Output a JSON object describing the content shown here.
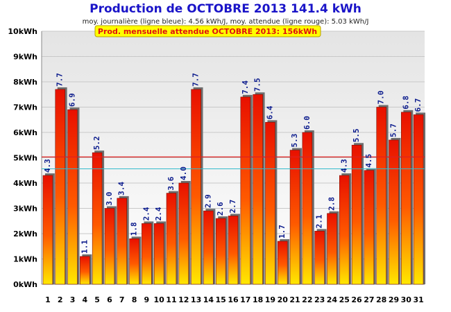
{
  "header": {
    "title": "Production de OCTOBRE 2013  141.4 kWh",
    "subtitle": "moy. journalière (ligne bleue): 4.56 kWh/J,   moy. attendue (ligne rouge): 5.03 kWh/J",
    "expected_label": "Prod. mensuelle attendue OCTOBRE 2013: 156kWh"
  },
  "colors": {
    "title": "#1a14c8",
    "bar_top": "#e81000",
    "bar_bottom": "#ffe800",
    "bar_shadow": "#6e6e6e",
    "avg_line": "#33bbcc",
    "expected_line": "#e02020",
    "label_box_bg": "#ffff00",
    "value_label": "#0a1a8c"
  },
  "chart_data": {
    "type": "bar",
    "title": "Production de OCTOBRE 2013  141.4 kWh",
    "categories": [
      "1",
      "2",
      "3",
      "4",
      "5",
      "6",
      "7",
      "8",
      "9",
      "10",
      "11",
      "12",
      "13",
      "14",
      "15",
      "16",
      "17",
      "18",
      "19",
      "20",
      "21",
      "22",
      "23",
      "24",
      "25",
      "26",
      "27",
      "28",
      "29",
      "30",
      "31"
    ],
    "values": [
      4.3,
      7.7,
      6.9,
      1.1,
      5.2,
      3.0,
      3.4,
      1.8,
      2.4,
      2.4,
      3.6,
      4.0,
      7.7,
      2.9,
      2.6,
      2.7,
      7.4,
      7.5,
      6.4,
      1.7,
      5.3,
      6.0,
      2.1,
      2.8,
      4.3,
      5.5,
      4.5,
      7.0,
      5.7,
      6.8,
      6.7
    ],
    "value_labels": [
      "4.3",
      "7.7",
      "6.9",
      "1.1",
      "5.2",
      "3.0",
      "3.4",
      "1.8",
      "2.4",
      "2.4",
      "3.6",
      "4.0",
      "7.7",
      "2.9",
      "2.6",
      "2.7",
      "7.4",
      "7.5",
      "6.4",
      "1.7",
      "5.3",
      "6.0",
      "2.1",
      "2.8",
      "4.3",
      "5.5",
      "4.5",
      "7.0",
      "5.7",
      "6.8",
      "6.7"
    ],
    "ylim": [
      0,
      10
    ],
    "yticks": [
      "0kWh",
      "1kWh",
      "2kWh",
      "3kWh",
      "4kWh",
      "5kWh",
      "6kWh",
      "7kWh",
      "8kWh",
      "9kWh",
      "10kWh"
    ],
    "avg_daily": 4.56,
    "expected_daily": 5.03,
    "grid": true
  }
}
